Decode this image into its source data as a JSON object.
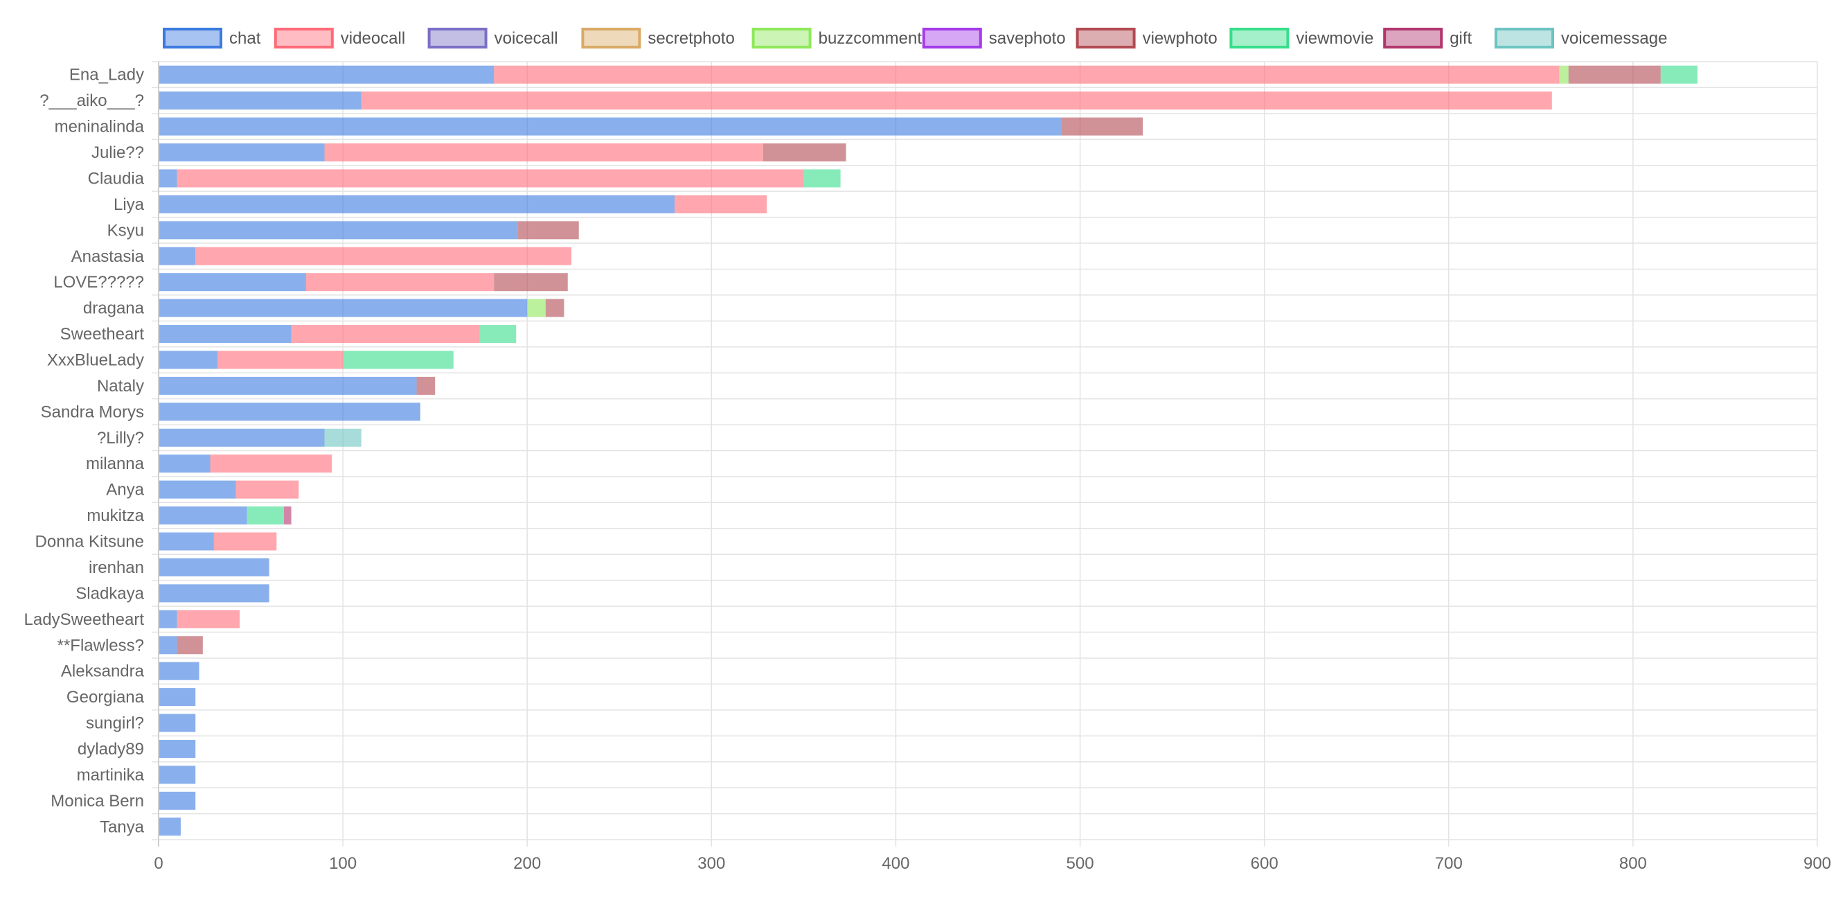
{
  "chart_data": {
    "type": "bar",
    "orientation": "horizontal",
    "stacked": true,
    "title": "",
    "xlabel": "",
    "ylabel": "",
    "xlim": [
      0,
      900
    ],
    "x_ticks": [
      "0",
      "100",
      "200",
      "300",
      "400",
      "500",
      "600",
      "700",
      "800",
      "900"
    ],
    "grid": true,
    "legend_position": "top",
    "categories": [
      "Ena_Lady",
      "?___aiko___?",
      "meninalinda",
      "Julie??",
      "Claudia",
      "Liya",
      "Ksyu",
      "Anastasia",
      "LOVE?????",
      "dragana",
      "Sweetheart",
      "XxxBlueLady",
      "Nataly",
      "Sandra Morys",
      "?Lilly?",
      "milanna",
      "Anya",
      "mukitza",
      "Donna Kitsune",
      "irenhan",
      "Sladkaya",
      "LadySweetheart",
      "**Flawless?",
      "Aleksandra",
      "Georgiana",
      "sungirl?",
      "dylady89",
      "martinika",
      "Monica Bern",
      "Tanya"
    ],
    "series": [
      {
        "name": "chat",
        "color": "#3b7be0",
        "values": [
          182,
          110,
          490,
          90,
          10,
          280,
          195,
          20,
          80,
          200,
          72,
          32,
          140,
          142,
          90,
          28,
          42,
          48,
          30,
          60,
          60,
          10,
          10,
          22,
          20,
          20,
          20,
          20,
          20,
          12
        ]
      },
      {
        "name": "videocall",
        "color": "#ff6b78",
        "values": [
          578,
          646,
          0,
          238,
          340,
          50,
          0,
          204,
          102,
          0,
          102,
          68,
          0,
          0,
          0,
          66,
          34,
          0,
          34,
          0,
          0,
          34,
          0,
          0,
          0,
          0,
          0,
          0,
          0,
          0
        ]
      },
      {
        "name": "voicecall",
        "color": "#7a6fc4",
        "values": [
          0,
          0,
          0,
          0,
          0,
          0,
          0,
          0,
          0,
          0,
          0,
          0,
          0,
          0,
          0,
          0,
          0,
          0,
          0,
          0,
          0,
          0,
          0,
          0,
          0,
          0,
          0,
          0,
          0,
          0
        ]
      },
      {
        "name": "secretphoto",
        "color": "#d9aa66",
        "values": [
          0,
          0,
          0,
          0,
          0,
          0,
          0,
          0,
          0,
          0,
          0,
          0,
          0,
          0,
          0,
          0,
          0,
          0,
          0,
          0,
          0,
          0,
          0,
          0,
          0,
          0,
          0,
          0,
          0,
          0
        ]
      },
      {
        "name": "buzzcomment",
        "color": "#8de85a",
        "values": [
          5,
          0,
          0,
          0,
          0,
          0,
          0,
          0,
          0,
          10,
          0,
          0,
          0,
          0,
          0,
          0,
          0,
          0,
          0,
          0,
          0,
          0,
          0,
          0,
          0,
          0,
          0,
          0,
          0,
          0
        ]
      },
      {
        "name": "savephoto",
        "color": "#a43be8",
        "values": [
          0,
          0,
          0,
          0,
          0,
          0,
          0,
          0,
          0,
          0,
          0,
          0,
          0,
          0,
          0,
          0,
          0,
          0,
          0,
          0,
          0,
          0,
          0,
          0,
          0,
          0,
          0,
          0,
          0,
          0
        ]
      },
      {
        "name": "viewphoto",
        "color": "#b24a52",
        "values": [
          50,
          0,
          44,
          45,
          0,
          0,
          33,
          0,
          40,
          10,
          0,
          0,
          10,
          0,
          0,
          0,
          0,
          0,
          0,
          0,
          0,
          0,
          14,
          0,
          0,
          0,
          0,
          0,
          0,
          0
        ]
      },
      {
        "name": "viewmovie",
        "color": "#36de8a",
        "values": [
          20,
          0,
          0,
          0,
          20,
          0,
          0,
          0,
          0,
          0,
          20,
          60,
          0,
          0,
          0,
          0,
          0,
          20,
          0,
          0,
          0,
          0,
          0,
          0,
          0,
          0,
          0,
          0,
          0,
          0
        ]
      },
      {
        "name": "gift",
        "color": "#b2366e",
        "values": [
          0,
          0,
          0,
          0,
          0,
          0,
          0,
          0,
          0,
          0,
          0,
          0,
          0,
          0,
          0,
          0,
          0,
          4,
          0,
          0,
          0,
          0,
          0,
          0,
          0,
          0,
          0,
          0,
          0,
          0
        ]
      },
      {
        "name": "voicemessage",
        "color": "#6cc4c2",
        "values": [
          0,
          0,
          0,
          0,
          0,
          0,
          0,
          0,
          0,
          0,
          0,
          0,
          0,
          0,
          20,
          0,
          0,
          0,
          0,
          0,
          0,
          0,
          0,
          0,
          0,
          0,
          0,
          0,
          0,
          0
        ]
      }
    ]
  }
}
